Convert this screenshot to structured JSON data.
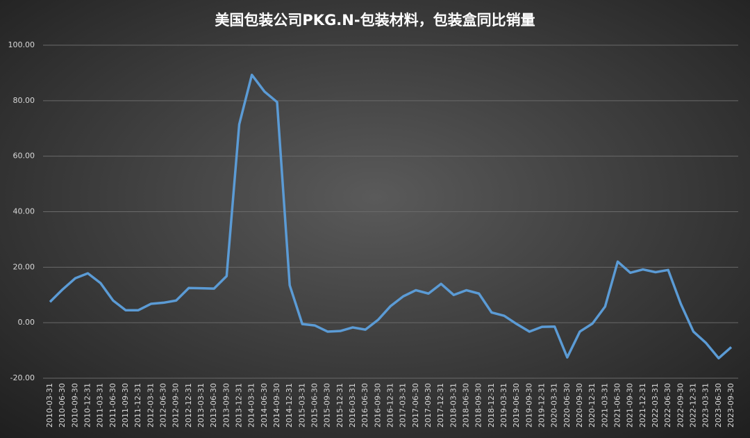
{
  "chart_data": {
    "type": "line",
    "title": "美国包装公司PKG.N-包装材料，包装盒同比销量",
    "categories": [
      "2010-03-31",
      "2010-06-30",
      "2010-09-30",
      "2010-12-31",
      "2011-03-31",
      "2011-06-30",
      "2011-09-30",
      "2011-12-31",
      "2012-03-31",
      "2012-06-30",
      "2012-09-30",
      "2012-12-31",
      "2013-03-31",
      "2013-06-30",
      "2013-09-30",
      "2013-12-31",
      "2014-03-31",
      "2014-06-30",
      "2014-09-30",
      "2014-12-31",
      "2015-03-31",
      "2015-06-30",
      "2015-09-30",
      "2015-12-31",
      "2016-03-31",
      "2016-06-30",
      "2016-09-30",
      "2016-12-31",
      "2017-03-31",
      "2017-06-30",
      "2017-09-30",
      "2017-12-31",
      "2018-03-31",
      "2018-06-30",
      "2018-09-30",
      "2018-12-31",
      "2019-03-31",
      "2019-06-30",
      "2019-09-30",
      "2019-12-31",
      "2020-03-31",
      "2020-06-30",
      "2020-09-30",
      "2020-12-31",
      "2021-03-31",
      "2021-06-30",
      "2021-09-30",
      "2021-12-31",
      "2022-03-31",
      "2022-06-30",
      "2022-09-30",
      "2022-12-31",
      "2023-03-31",
      "2023-06-30",
      "2023-09-30"
    ],
    "series": [
      {
        "name": "包装盒同比销量",
        "color": "#5b9bd5",
        "values": [
          7.5,
          12,
          16,
          17.8,
          14.3,
          8,
          4.5,
          4.5,
          6.8,
          7.2,
          8,
          12.5,
          12.4,
          12.3,
          16.8,
          71.5,
          89.3,
          83.3,
          79.5,
          13.5,
          -0.5,
          -1,
          -3.2,
          -3,
          -1.7,
          -2.5,
          1,
          6,
          9.5,
          11.7,
          10.5,
          14,
          10,
          11.7,
          10.5,
          3.7,
          2.5,
          -0.5,
          -3.2,
          -1.5,
          -1.4,
          -12.5,
          -3.2,
          -0.3,
          5.8,
          22,
          18,
          19.2,
          18.2,
          19,
          6.8,
          -3.2,
          -7.3,
          -12.8,
          -8.8
        ]
      }
    ],
    "ylim": [
      -20,
      100
    ],
    "yticks": [
      {
        "value": -20,
        "label": "-20.00"
      },
      {
        "value": 0,
        "label": "0.00"
      },
      {
        "value": 20,
        "label": "20.00"
      },
      {
        "value": 40,
        "label": "40.00"
      },
      {
        "value": 60,
        "label": "60.00"
      },
      {
        "value": 80,
        "label": "80.00"
      },
      {
        "value": 100,
        "label": "100.00"
      }
    ],
    "grid": true
  }
}
